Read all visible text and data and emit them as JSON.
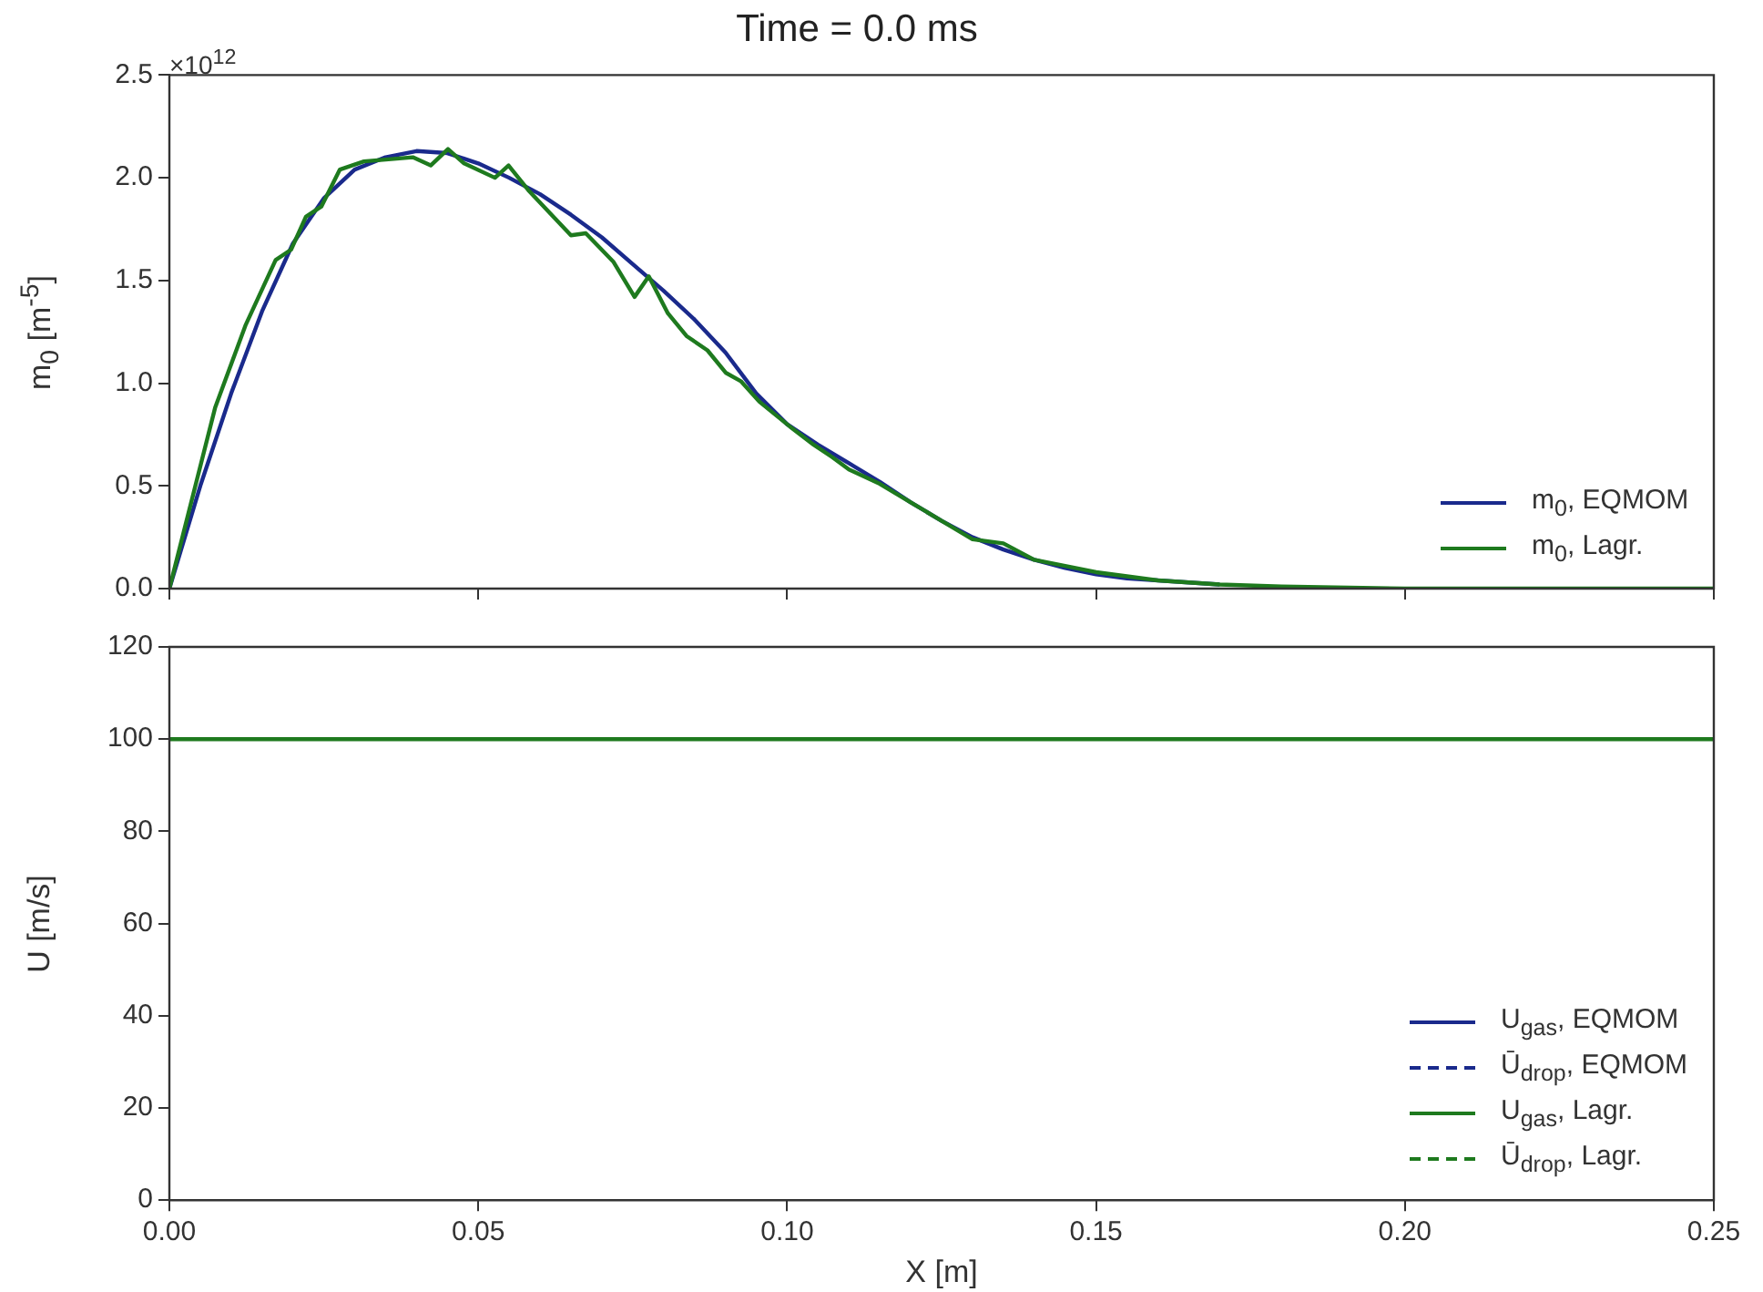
{
  "chart_data": [
    {
      "type": "line",
      "title": "Time = 0.0 ms",
      "ylabel": "m$_{0}$ [m$^{-5}$]",
      "annotations": [
        "×10$^{12}$"
      ],
      "xlim": [
        0,
        0.25
      ],
      "xticks": [
        0,
        0.05,
        0.1,
        0.15,
        0.2,
        0.25
      ],
      "ylim": [
        0,
        2.5
      ],
      "yticks": [
        {
          "value": 0,
          "label": "0.0"
        },
        0.5,
        {
          "value": 1,
          "label": "1.0"
        },
        1.5,
        {
          "value": 2,
          "label": "2.0"
        },
        2.5
      ],
      "tick_labels": "y",
      "grid": false,
      "legend": "bottom right",
      "line_style": "solid",
      "series": [
        {
          "name": "m$_{0}$, EQMOM",
          "color": "#1a2a8c",
          "x": [
            0,
            0.005,
            0.01,
            0.015,
            0.02,
            0.025,
            0.03,
            0.035,
            0.04,
            0.045,
            0.05,
            0.055,
            0.06,
            0.065,
            0.07,
            0.075,
            0.08,
            0.085,
            0.09,
            0.095,
            0.1,
            0.105,
            0.11,
            0.115,
            0.12,
            0.125,
            0.13,
            0.135,
            0.14,
            0.145,
            0.15,
            0.155,
            0.16,
            0.17
          ],
          "values": [
            0,
            0.5,
            0.95,
            1.35,
            1.68,
            1.9,
            2.04,
            2.1,
            2.13,
            2.12,
            2.07,
            2,
            1.92,
            1.82,
            1.71,
            1.58,
            1.45,
            1.31,
            1.15,
            0.95,
            0.8,
            0.7,
            0.61,
            0.52,
            0.42,
            0.33,
            0.25,
            0.19,
            0.14,
            0.1,
            0.07,
            0.05,
            0.04,
            0.02
          ]
        },
        {
          "name": "m$_{0}$, Lagr.",
          "color": "#1e7a1e",
          "x": [
            0,
            0.0074,
            0.0123,
            0.0172,
            0.0197,
            0.0221,
            0.0246,
            0.0276,
            0.0315,
            0.0394,
            0.0423,
            0.0451,
            0.0477,
            0.0527,
            0.0549,
            0.0581,
            0.065,
            0.0674,
            0.0719,
            0.0753,
            0.0776,
            0.0807,
            0.0837,
            0.0871,
            0.0901,
            0.0925,
            0.0955,
            0.1004,
            0.1043,
            0.1073,
            0.11,
            0.115,
            0.12,
            0.125,
            0.13,
            0.135,
            0.14,
            0.15,
            0.16,
            0.17,
            0.18,
            0.2,
            0.25
          ],
          "values": [
            0,
            0.88,
            1.28,
            1.6,
            1.65,
            1.81,
            1.86,
            2.04,
            2.08,
            2.1,
            2.06,
            2.14,
            2.07,
            2,
            2.06,
            1.94,
            1.72,
            1.73,
            1.59,
            1.42,
            1.52,
            1.34,
            1.23,
            1.16,
            1.05,
            1.01,
            0.91,
            0.79,
            0.7,
            0.64,
            0.58,
            0.51,
            0.42,
            0.33,
            0.24,
            0.22,
            0.14,
            0.08,
            0.04,
            0.02,
            0.01,
            0,
            0
          ]
        }
      ]
    },
    {
      "type": "line",
      "xlabel": "X [m]",
      "ylabel": "U [m/s]",
      "xlim": [
        0,
        0.25
      ],
      "xticks": [
        {
          "value": 0,
          "label": "0.00"
        },
        0.05,
        {
          "value": 0.1,
          "label": "0.10"
        },
        0.15,
        {
          "value": 0.2,
          "label": "0.20"
        },
        0.25
      ],
      "ylim": [
        0,
        120
      ],
      "yticks": [
        0,
        20,
        40,
        60,
        80,
        100,
        120
      ],
      "grid": false,
      "legend": "bottom right",
      "x": [
        0,
        0.25
      ],
      "series": [
        {
          "name": "U$_{gas}$, EQMOM",
          "color": "#1a2a8c",
          "line_style": "solid",
          "values": [
            null,
            null
          ]
        },
        {
          "name": "Ū$_{drop}$, EQMOM",
          "color": "#1a2a8c",
          "line_style": "dashed",
          "values": [
            null,
            null
          ]
        },
        {
          "name": "U$_{gas}$, Lagr.",
          "color": "#1e7a1e",
          "line_style": "solid",
          "values": [
            100,
            100
          ]
        },
        {
          "name": "Ū$_{drop}$, Lagr.",
          "color": "#1e7a1e",
          "line_style": "dashed",
          "values": [
            null,
            null
          ]
        }
      ]
    }
  ]
}
